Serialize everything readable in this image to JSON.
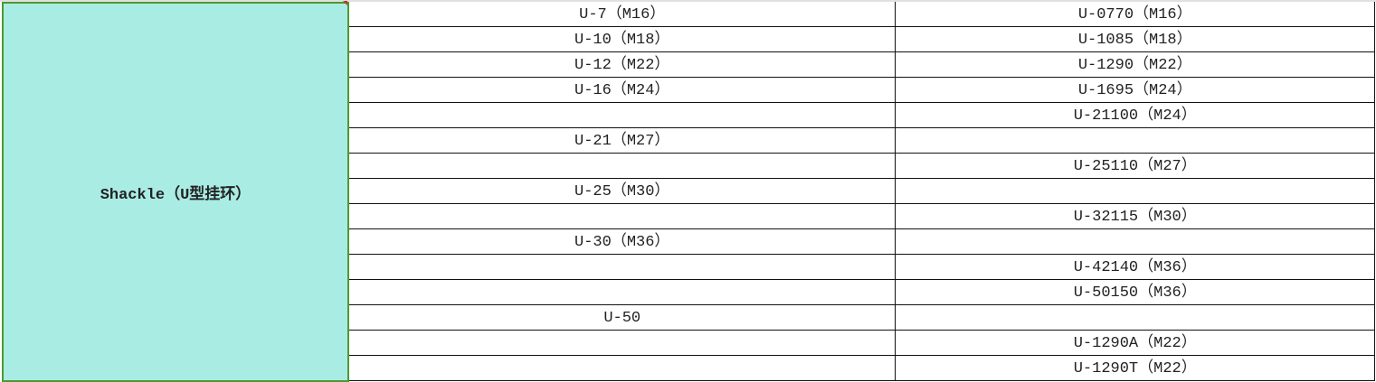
{
  "category": "Shackle（U型挂环）",
  "rows": [
    [
      "U-7（M16）",
      "U-0770（M16）"
    ],
    [
      "U-10（M18）",
      "U-1085（M18）"
    ],
    [
      "U-12（M22）",
      "U-1290（M22）"
    ],
    [
      "U-16（M24）",
      "U-1695（M24）"
    ],
    [
      "",
      "U-21100（M24）"
    ],
    [
      "U-21（M27）",
      ""
    ],
    [
      "",
      "U-25110（M27）"
    ],
    [
      "U-25（M30）",
      ""
    ],
    [
      "",
      "U-32115（M30）"
    ],
    [
      "U-30（M36）",
      ""
    ],
    [
      "",
      "U-42140（M36）"
    ],
    [
      "",
      "U-50150（M36）"
    ],
    [
      "U-50",
      ""
    ],
    [
      "",
      "U-1290A（M22）"
    ],
    [
      "",
      "U-1290T（M22）"
    ]
  ],
  "colors": {
    "category_fill": "#a8ece4",
    "category_border": "#4e9a2f"
  }
}
